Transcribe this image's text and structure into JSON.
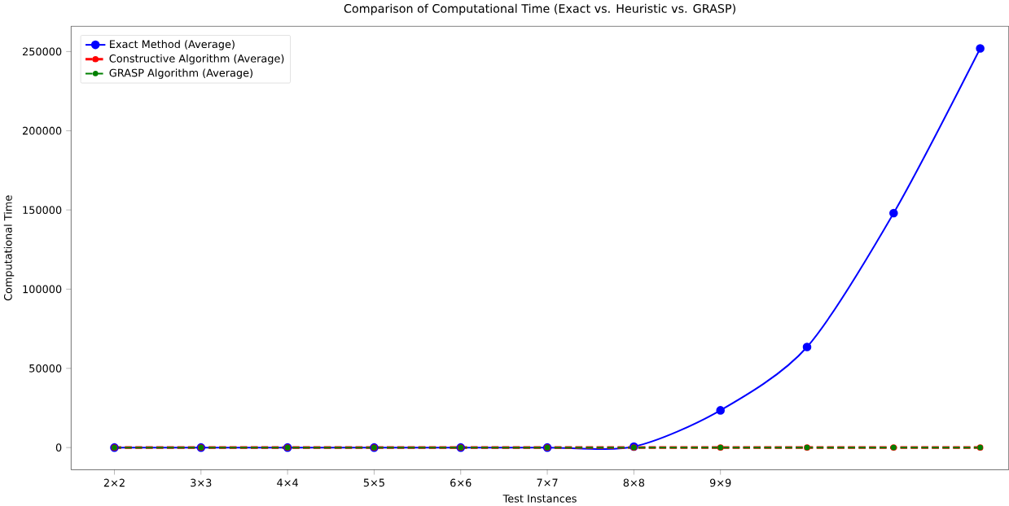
{
  "chart_data": {
    "type": "line",
    "title": "Comparison of Computational Time (Exact vs. Heuristic vs. GRASP)",
    "xlabel": "Test Instances",
    "ylabel": "Computational Time",
    "categories": [
      "2×2",
      "3×3",
      "4×4",
      "5×5",
      "6×6",
      "7×7",
      "8×8",
      "9×9",
      null,
      null,
      null
    ],
    "series": [
      {
        "name": "Exact Method (Average)",
        "color": "#0000ff",
        "line_style": "solid",
        "values": [
          0,
          0,
          0,
          0,
          0,
          0,
          600,
          23500,
          63500,
          148000,
          252000
        ]
      },
      {
        "name": "Constructive Algorithm (Average)",
        "color": "#ff0000",
        "line_style": "dashed",
        "values": [
          0,
          0,
          0,
          0,
          0,
          0,
          0,
          0,
          0,
          0,
          0
        ]
      },
      {
        "name": "GRASP Algorithm (Average)",
        "color": "#008000",
        "line_style": "dashed",
        "values": [
          0,
          0,
          0,
          0,
          0,
          0,
          0,
          0,
          0,
          0,
          0
        ]
      }
    ],
    "ylim": [
      -14000,
      266000
    ],
    "yticks": [
      0,
      50000,
      100000,
      150000,
      200000,
      250000
    ],
    "marker": "circle",
    "legend": "top left",
    "grid": false
  }
}
